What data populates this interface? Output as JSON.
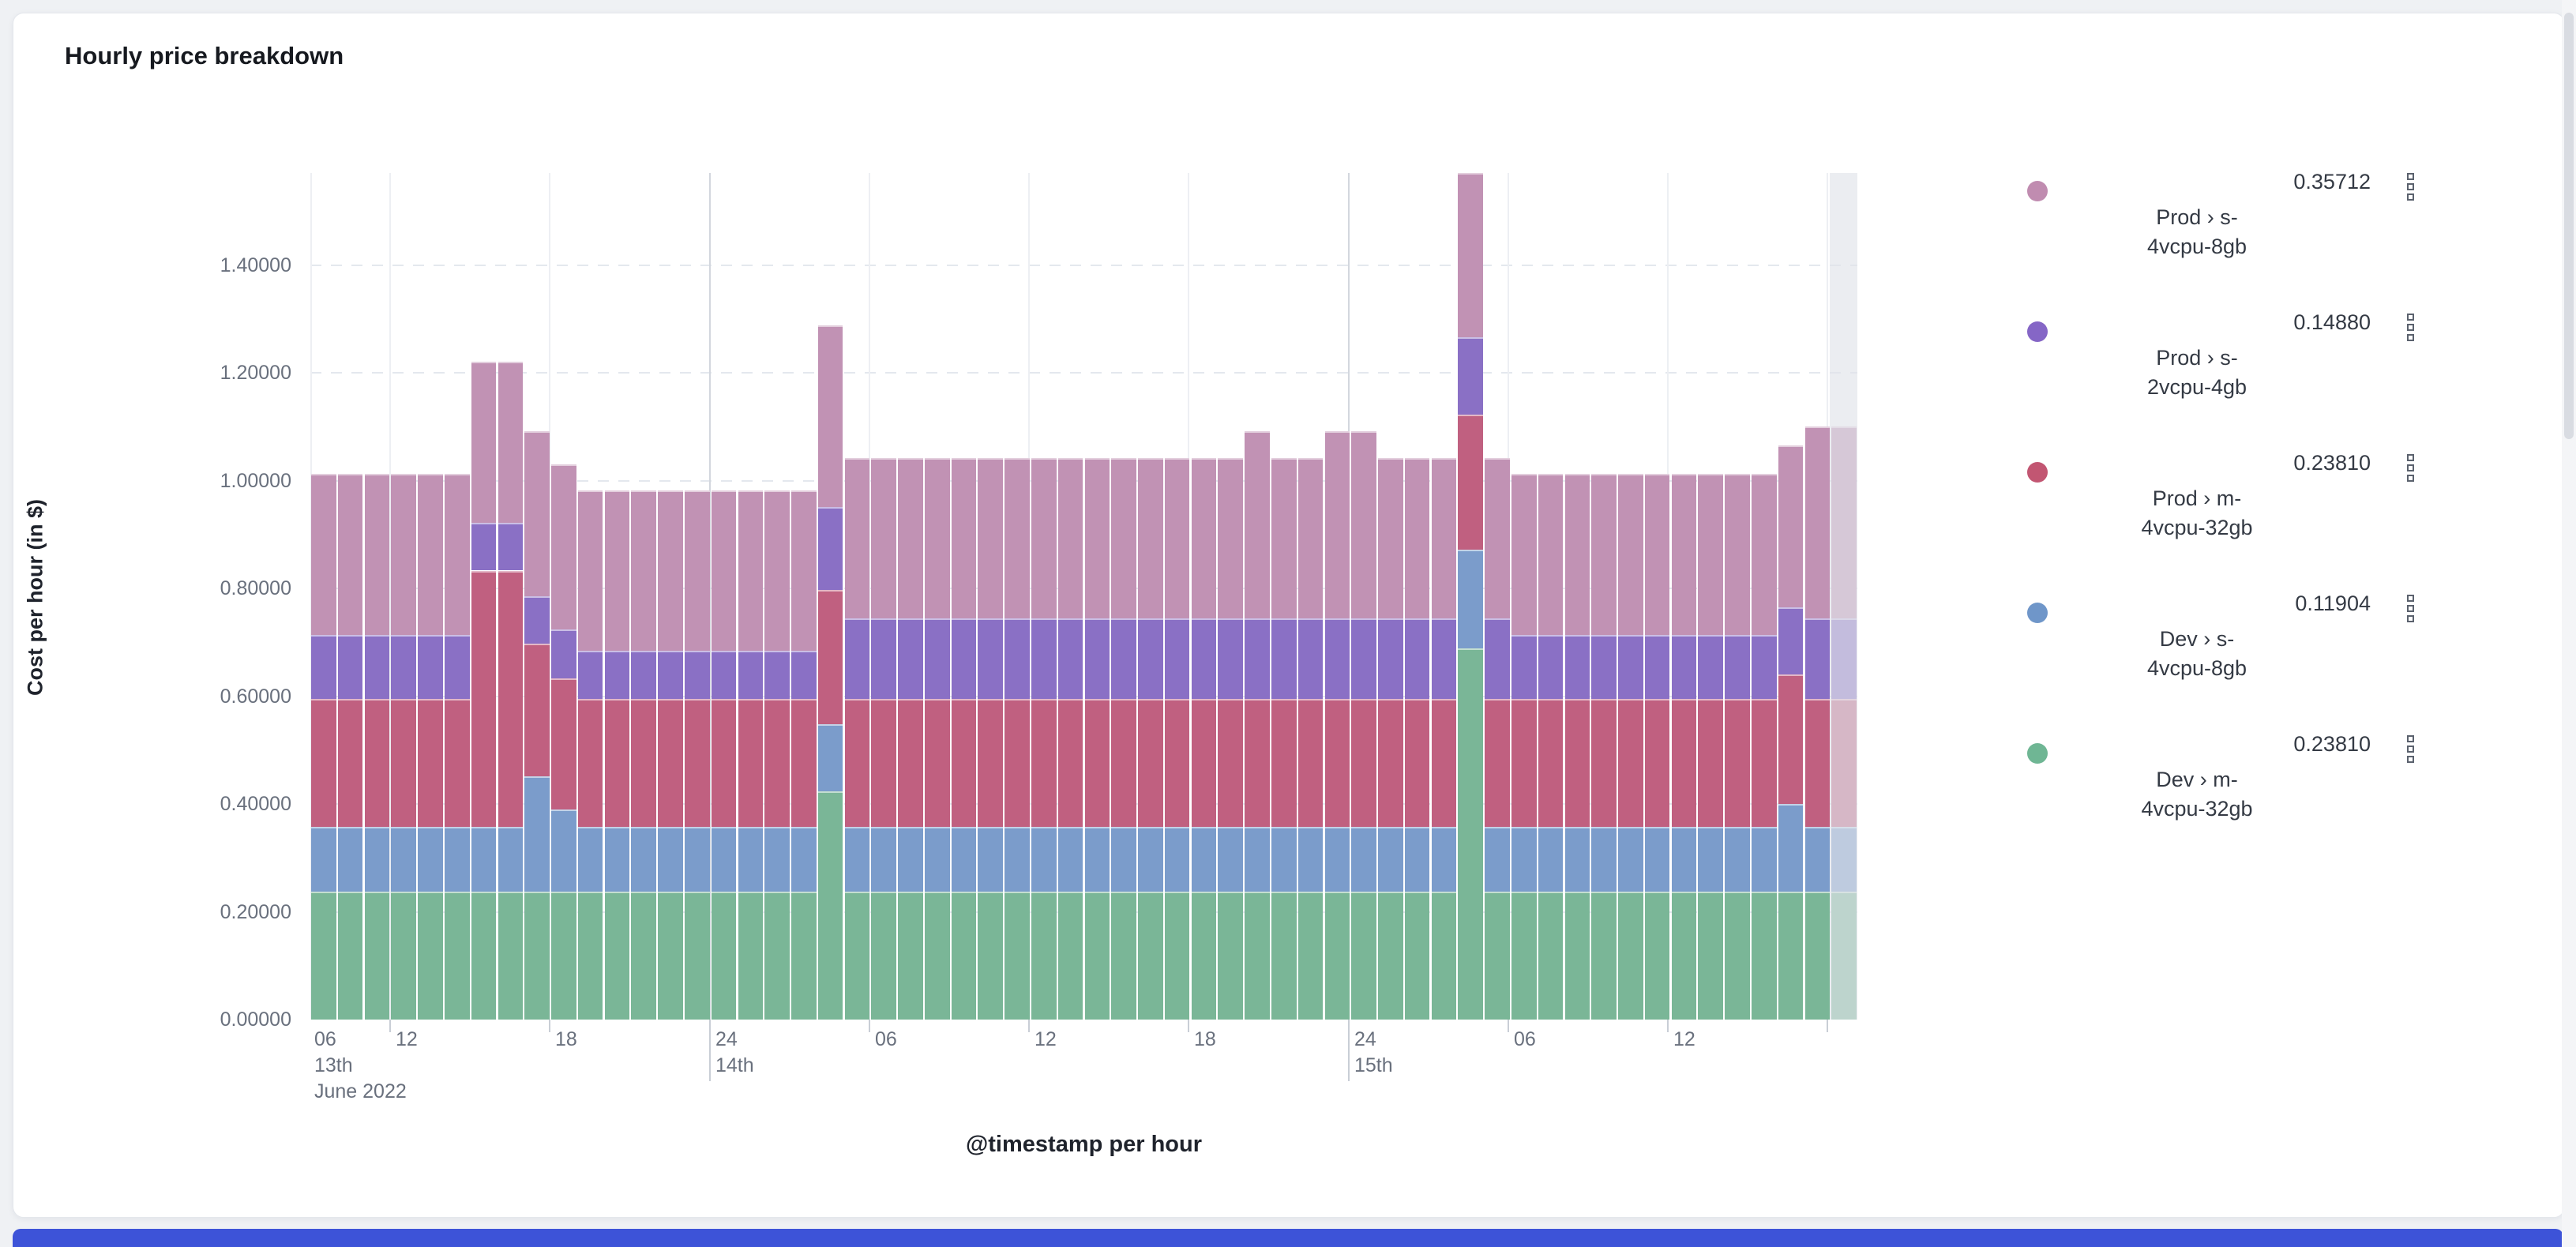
{
  "panel": {
    "title": "Hourly price breakdown"
  },
  "chart_data": {
    "type": "bar",
    "stacked": true,
    "title": "Hourly price breakdown",
    "xlabel": "@timestamp per hour",
    "ylabel": "Cost per hour (in $)",
    "ylim": [
      0,
      1.57
    ],
    "bucket": "1 hour",
    "x_range": "2022-06-13 09:00 to 2022-06-15 19:00",
    "grid": true,
    "legend_position": "right",
    "y_axis": {
      "title": "Cost per hour (in $)",
      "tick_step": 0.2,
      "tick_labels": [
        "0.00000",
        "0.20000",
        "0.40000",
        "0.60000",
        "0.80000",
        "1.00000",
        "1.20000",
        "1.40000"
      ]
    },
    "x_axis": {
      "title": "@timestamp per hour",
      "clamped_first": {
        "label": "06",
        "day": "13th",
        "month": "June 2022"
      },
      "ticks": [
        {
          "x": 477,
          "label": "12"
        },
        {
          "x": 679,
          "label": "18"
        },
        {
          "x": 882,
          "label": "24",
          "day": "14th"
        },
        {
          "x": 1084,
          "label": "06"
        },
        {
          "x": 1286,
          "label": "12"
        },
        {
          "x": 1488,
          "label": "18"
        },
        {
          "x": 1691,
          "label": "24",
          "day": "15th"
        },
        {
          "x": 1893,
          "label": "06"
        },
        {
          "x": 2095,
          "label": "12"
        },
        {
          "x": 2297,
          "label": ""
        }
      ]
    },
    "series": [
      {
        "name": "Dev › m-4vcpu-32gb",
        "color": "#7ab697"
      },
      {
        "name": "Dev › s-4vcpu-8gb",
        "color": "#7b9ccb"
      },
      {
        "name": "Prod › m-4vcpu-32gb",
        "color": "#c06080"
      },
      {
        "name": "Prod › s-2vcpu-4gb",
        "color": "#8a70c5"
      },
      {
        "name": "Prod › s-4vcpu-8gb",
        "color": "#c192b4"
      }
    ],
    "bar_types": {
      "A": [
        0.238,
        0.119,
        0.238,
        0.119,
        0.298
      ],
      "B": [
        0.238,
        0.119,
        0.476,
        0.089,
        0.298
      ],
      "C": [
        0.238,
        0.213,
        0.246,
        0.088,
        0.307
      ],
      "D": [
        0.238,
        0.152,
        0.243,
        0.091,
        0.306
      ],
      "E": [
        0.238,
        0.119,
        0.238,
        0.089,
        0.298
      ],
      "T": [
        0.423,
        0.125,
        0.249,
        0.154,
        0.337
      ],
      "P": [
        0.238,
        0.119,
        0.238,
        0.149,
        0.298
      ],
      "F": [
        0.238,
        0.119,
        0.238,
        0.149,
        0.347
      ],
      "S": [
        0.689,
        0.183,
        0.25,
        0.144,
        0.305
      ],
      "H": [
        0.238,
        0.162,
        0.24,
        0.125,
        0.3
      ],
      "G": [
        0.238,
        0.119,
        0.238,
        0.149,
        0.357
      ]
    },
    "bars_sequence": "AAAAAABBCDEEEEEEEEETPPPPPPPPPPPPPPPFPPFFPPPSPAAAAAAAAAAHGG",
    "partial_last_bucket": true
  },
  "legend": {
    "items": [
      {
        "label": "Prod › s-4vcpu-8gb",
        "lines": [
          "Prod › s-",
          "4vcpu-8gb"
        ],
        "value": "0.35712",
        "color": "#c08cb0"
      },
      {
        "label": "Prod › s-2vcpu-4gb",
        "lines": [
          "Prod › s-",
          "2vcpu-4gb"
        ],
        "value": "0.14880",
        "color": "#8566c6"
      },
      {
        "label": "Prod › m-4vcpu-32gb",
        "lines": [
          "Prod › m-",
          "4vcpu-32gb"
        ],
        "value": "0.23810",
        "color": "#c25672"
      },
      {
        "label": "Dev › s-4vcpu-8gb",
        "lines": [
          "Dev › s-",
          "4vcpu-8gb"
        ],
        "value": "0.11904",
        "color": "#6f96c9"
      },
      {
        "label": "Dev › m-4vcpu-32gb",
        "lines": [
          "Dev › m-",
          "4vcpu-32gb"
        ],
        "value": "0.23810",
        "color": "#6fb694"
      }
    ]
  }
}
